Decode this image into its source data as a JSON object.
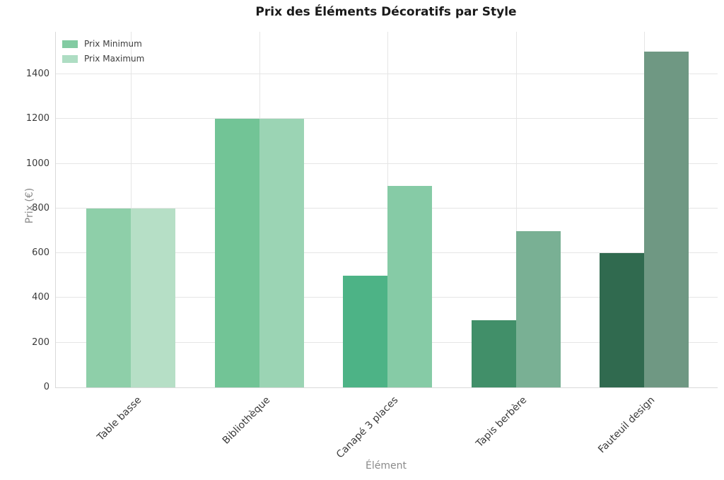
{
  "colors": {
    "background": "#ffffff",
    "grid": "#e5e5e5",
    "axis_line": "#d9d9d9",
    "tick_label": "#3a3a3a",
    "axis_title": "#8a8a8a",
    "title": "#1a1a1a",
    "legend_text": "#3d3d3d"
  },
  "chart_data": {
    "type": "bar",
    "title": "Prix des Éléments Décoratifs par Style",
    "xlabel": "Élément",
    "ylabel": "Prix (€)",
    "categories": [
      "Table basse",
      "Bibliothèque",
      "Canapé 3 places",
      "Tapis berbère",
      "Fauteuil design"
    ],
    "series": [
      {
        "name": "Prix Minimum",
        "values": [
          800,
          1200,
          500,
          300,
          600
        ],
        "legend_color": "#82cba2",
        "bar_colors": [
          "#8ecfa9",
          "#72c496",
          "#4db386",
          "#418f69",
          "#306a4f"
        ]
      },
      {
        "name": "Prix Maximum",
        "values": [
          800,
          1200,
          900,
          700,
          1500
        ],
        "legend_color": "#aeddc3",
        "bar_colors": [
          "#b6dfc6",
          "#9bd4b4",
          "#86cba6",
          "#79b094",
          "#6f9883"
        ]
      }
    ],
    "yticks": [
      0,
      200,
      400,
      600,
      800,
      1000,
      1200,
      1400
    ],
    "ylim": [
      0,
      1590
    ],
    "grid": true,
    "legend_position": "top-left"
  }
}
